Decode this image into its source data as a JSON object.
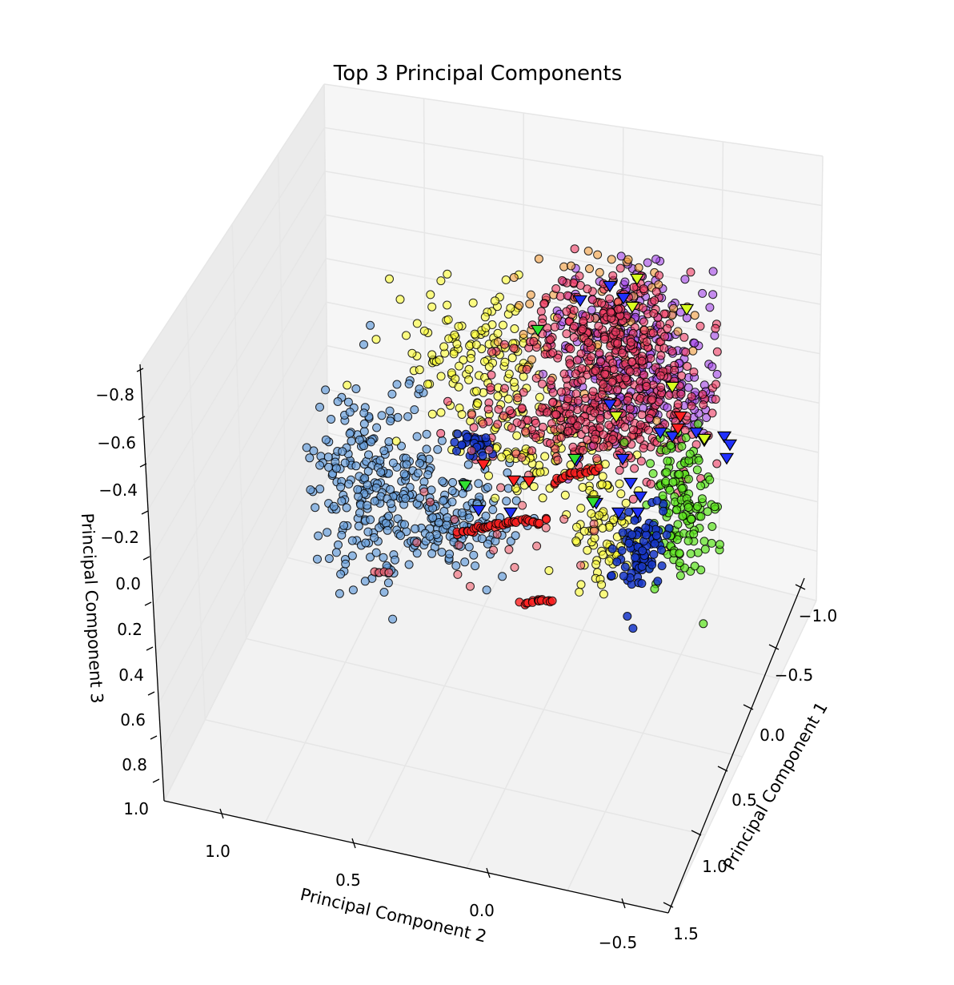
{
  "chart_data": {
    "type": "scatter",
    "projection": "3d",
    "title": "Top 3 Principal Components",
    "axes": {
      "x": {
        "label": "Principal Component 1",
        "ticks": [
          "−1.0",
          "−0.5",
          "0.0",
          "0.5",
          "1.0",
          "1.5"
        ],
        "range": [
          -1.0,
          1.5
        ]
      },
      "y": {
        "label": "Principal Component 2",
        "ticks": [
          "1.0",
          "0.5",
          "0.0",
          "−0.5"
        ],
        "range": [
          1.3,
          -0.7
        ]
      },
      "z": {
        "label": "Principal Component 3",
        "ticks": [
          "−0.8",
          "−0.6",
          "−0.4",
          "−0.2",
          "0.0",
          "0.2",
          "0.4",
          "0.6",
          "0.8",
          "1.0"
        ],
        "range": [
          -0.8,
          1.0
        ]
      }
    },
    "grid": true,
    "legend": "none",
    "series": [
      {
        "marker": "circle",
        "color": "#6a9fdc",
        "alpha": 0.7,
        "points": 400
      },
      {
        "marker": "circle",
        "color": "#ffff33",
        "alpha": 0.6,
        "points": 320
      },
      {
        "marker": "circle",
        "color": "#f03c64",
        "alpha": 0.6,
        "points": 600
      },
      {
        "marker": "circle",
        "color": "#a344e8",
        "alpha": 0.6,
        "points": 300
      },
      {
        "marker": "circle",
        "color": "#ff2020",
        "alpha": 0.8,
        "points": 130
      },
      {
        "marker": "circle",
        "color": "#1636c8",
        "alpha": 0.85,
        "points": 120
      },
      {
        "marker": "circle",
        "color": "#5ce41e",
        "alpha": 0.7,
        "points": 150
      },
      {
        "marker": "circle",
        "color": "#f5a040",
        "alpha": 0.6,
        "points": 80
      },
      {
        "marker": "triangle-down",
        "color": "#2030ff",
        "alpha": 1.0,
        "points": 20
      },
      {
        "marker": "triangle-down",
        "color": "#d8ff20",
        "alpha": 1.0,
        "points": 7
      },
      {
        "marker": "triangle-down",
        "color": "#30e030",
        "alpha": 1.0,
        "points": 4
      },
      {
        "marker": "triangle-down",
        "color": "#ff2020",
        "alpha": 1.0,
        "points": 5
      }
    ]
  }
}
